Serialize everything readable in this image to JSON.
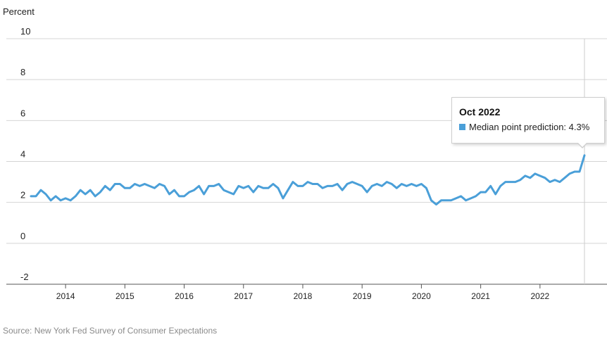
{
  "chart_data": {
    "type": "line",
    "ylabel": "Percent",
    "ylim": [
      -2,
      10
    ],
    "yticks": [
      "-2",
      "0",
      "2",
      "4",
      "6",
      "8",
      "10"
    ],
    "xticks": [
      "2014",
      "2015",
      "2016",
      "2017",
      "2018",
      "2019",
      "2020",
      "2021",
      "2022"
    ],
    "x_start": "Jun 2013",
    "x_end": "Oct 2022",
    "grid": true,
    "series": [
      {
        "color": "#4a9fd8",
        "values": [
          2.3,
          2.3,
          2.6,
          2.4,
          2.1,
          2.3,
          2.1,
          2.2,
          2.1,
          2.3,
          2.6,
          2.4,
          2.6,
          2.3,
          2.5,
          2.8,
          2.6,
          2.9,
          2.9,
          2.7,
          2.7,
          2.9,
          2.8,
          2.9,
          2.8,
          2.7,
          2.9,
          2.8,
          2.4,
          2.6,
          2.3,
          2.3,
          2.5,
          2.6,
          2.8,
          2.4,
          2.8,
          2.8,
          2.9,
          2.6,
          2.5,
          2.4,
          2.8,
          2.7,
          2.8,
          2.5,
          2.8,
          2.7,
          2.7,
          2.9,
          2.7,
          2.2,
          2.6,
          3.0,
          2.8,
          2.8,
          3.0,
          2.9,
          2.9,
          2.7,
          2.8,
          2.8,
          2.9,
          2.6,
          2.9,
          3.0,
          2.9,
          2.8,
          2.5,
          2.8,
          2.9,
          2.8,
          3.0,
          2.9,
          2.7,
          2.9,
          2.8,
          2.9,
          2.8,
          2.9,
          2.7,
          2.1,
          1.9,
          2.1,
          2.1,
          2.1,
          2.2,
          2.3,
          2.1,
          2.2,
          2.3,
          2.5,
          2.5,
          2.8,
          2.4,
          2.8,
          3.0,
          3.0,
          3.0,
          3.1,
          3.3,
          3.2,
          3.4,
          3.3,
          3.2,
          3.0,
          3.1,
          3.0,
          3.2,
          3.4,
          3.5,
          3.5,
          4.3
        ]
      }
    ]
  },
  "tooltip": {
    "title": "Oct 2022",
    "label": "Median point prediction: 4.3%",
    "swatch_color": "#4a9fd8"
  },
  "source": "Source: New York Fed Survey of Consumer Expectations"
}
